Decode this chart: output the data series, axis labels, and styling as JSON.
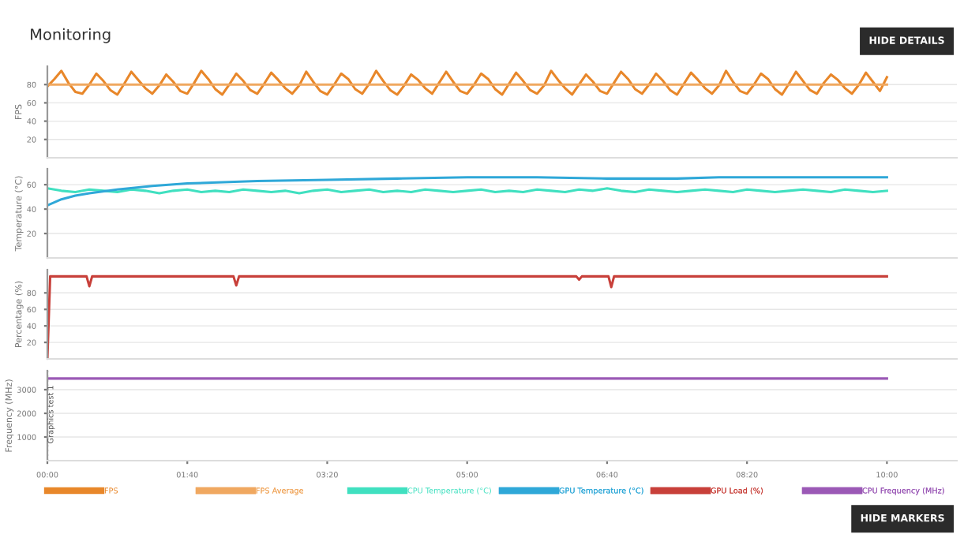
{
  "chart_data": [
    {
      "type": "line",
      "title": "Monitoring",
      "ylabel": "FPS",
      "xlim": [
        0,
        650
      ],
      "ylim": [
        0,
        100
      ],
      "yticks": [
        20,
        40,
        60,
        80
      ],
      "grid": "y",
      "tick_labels": "y",
      "annotations": [
        "HIDE DETAILS"
      ],
      "series": [
        {
          "name": "FPS",
          "color": "#e8872a",
          "x": [
            0,
            5,
            10,
            15,
            20,
            25,
            30,
            35,
            40,
            45,
            50,
            55,
            60,
            65,
            70,
            75,
            80,
            85,
            90,
            95,
            100,
            105,
            110,
            115,
            120,
            125,
            130,
            135,
            140,
            145,
            150,
            155,
            160,
            165,
            170,
            175,
            180,
            185,
            190,
            195,
            200,
            205,
            210,
            215,
            220,
            225,
            230,
            235,
            240,
            245,
            250,
            255,
            260,
            265,
            270,
            275,
            280,
            285,
            290,
            295,
            300,
            305,
            310,
            315,
            320,
            325,
            330,
            335,
            340,
            345,
            350,
            355,
            360,
            365,
            370,
            375,
            380,
            385,
            390,
            395,
            400,
            405,
            410,
            415,
            420,
            425,
            430,
            435,
            440,
            445,
            450,
            455,
            460,
            465,
            470,
            475,
            480,
            485,
            490,
            495,
            500,
            505,
            510,
            515,
            520,
            525,
            530,
            535,
            540,
            545,
            550,
            555,
            560,
            565,
            570,
            575,
            580,
            585,
            590,
            595,
            600
          ],
          "values": [
            78,
            86,
            95,
            82,
            72,
            70,
            80,
            92,
            84,
            74,
            69,
            81,
            94,
            85,
            76,
            70,
            79,
            91,
            83,
            73,
            70,
            82,
            95,
            86,
            75,
            69,
            80,
            92,
            84,
            74,
            70,
            81,
            93,
            85,
            76,
            70,
            79,
            94,
            83,
            73,
            69,
            80,
            92,
            86,
            75,
            70,
            81,
            95,
            84,
            74,
            69,
            79,
            91,
            85,
            76,
            70,
            82,
            94,
            83,
            73,
            70,
            80,
            92,
            86,
            75,
            69,
            81,
            93,
            84,
            74,
            70,
            79,
            95,
            85,
            76,
            69,
            80,
            91,
            83,
            73,
            70,
            82,
            94,
            86,
            75,
            70,
            80,
            92,
            84,
            74,
            69,
            81,
            93,
            85,
            76,
            70,
            79,
            95,
            83,
            73,
            70,
            80,
            92,
            86,
            75,
            69,
            81,
            94,
            84,
            74,
            70,
            82,
            91,
            85,
            76,
            70,
            80,
            93,
            83,
            73,
            88
          ]
        },
        {
          "name": "FPS Average",
          "color": "#f0a860",
          "x": [
            0,
            600
          ],
          "values": [
            80,
            80
          ]
        }
      ]
    },
    {
      "type": "line",
      "ylabel": "Temperature (°C)",
      "xlim": [
        0,
        650
      ],
      "ylim": [
        0,
        73
      ],
      "yticks": [
        20,
        40,
        60
      ],
      "grid": "y",
      "tick_labels": "y",
      "series": [
        {
          "name": "CPU Temperature (°C)",
          "color": "#40e0c0",
          "x": [
            0,
            10,
            20,
            30,
            40,
            50,
            60,
            70,
            80,
            90,
            100,
            110,
            120,
            130,
            140,
            150,
            160,
            170,
            180,
            190,
            200,
            210,
            220,
            230,
            240,
            250,
            260,
            270,
            280,
            290,
            300,
            310,
            320,
            330,
            340,
            350,
            360,
            370,
            380,
            390,
            400,
            410,
            420,
            430,
            440,
            450,
            460,
            470,
            480,
            490,
            500,
            510,
            520,
            530,
            540,
            550,
            560,
            570,
            580,
            590,
            600
          ],
          "values": [
            57,
            55,
            54,
            56,
            55,
            54,
            56,
            55,
            53,
            55,
            56,
            54,
            55,
            54,
            56,
            55,
            54,
            55,
            53,
            55,
            56,
            54,
            55,
            56,
            54,
            55,
            54,
            56,
            55,
            54,
            55,
            56,
            54,
            55,
            54,
            56,
            55,
            54,
            56,
            55,
            57,
            55,
            54,
            56,
            55,
            54,
            55,
            56,
            55,
            54,
            56,
            55,
            54,
            55,
            56,
            55,
            54,
            56,
            55,
            54,
            55
          ]
        },
        {
          "name": "GPU Temperature (°C)",
          "color": "#2fa8d8",
          "x": [
            0,
            10,
            20,
            30,
            50,
            75,
            100,
            150,
            200,
            250,
            300,
            350,
            400,
            450,
            480,
            500,
            550,
            600
          ],
          "values": [
            43,
            48,
            51,
            53,
            56,
            59,
            61,
            63,
            64,
            65,
            66,
            66,
            65,
            65,
            66,
            66,
            66,
            66
          ]
        }
      ]
    },
    {
      "type": "line",
      "ylabel": "Percentage (%)",
      "xlim": [
        0,
        650
      ],
      "ylim": [
        0,
        108
      ],
      "yticks": [
        20,
        40,
        60,
        80
      ],
      "grid": "y",
      "tick_labels": "y",
      "series": [
        {
          "name": "GPU Load (%)",
          "color": "#c8403a",
          "x": [
            0,
            2,
            28,
            30,
            32,
            133,
            135,
            137,
            378,
            380,
            382,
            401,
            403,
            405,
            600
          ],
          "values": [
            0,
            100,
            100,
            88,
            100,
            100,
            89,
            100,
            100,
            96,
            100,
            100,
            87,
            100,
            100
          ]
        }
      ]
    },
    {
      "type": "line",
      "ylabel": "Frequency (MHz)",
      "xlim": [
        0,
        650
      ],
      "ylim": [
        0,
        3800
      ],
      "yticks": [
        1000,
        2000,
        3000
      ],
      "xticks": [
        {
          "value": 0,
          "label": "00:00"
        },
        {
          "value": 100,
          "label": "01:40"
        },
        {
          "value": 200,
          "label": "03:20"
        },
        {
          "value": 300,
          "label": "05:00"
        },
        {
          "value": 400,
          "label": "06:40"
        },
        {
          "value": 500,
          "label": "08:20"
        },
        {
          "value": 600,
          "label": "10:00"
        }
      ],
      "grid": "y",
      "legend": "bottom",
      "annotations": [
        "HIDE MARKERS"
      ],
      "ref_lines": [
        {
          "axis": "x",
          "value": 0,
          "label": "Graphics test 1",
          "color": "#555555",
          "line_style": "dotted"
        }
      ],
      "series": [
        {
          "name": "CPU Frequency (MHz)",
          "color": "#9b59b6",
          "x": [
            0,
            600
          ],
          "values": [
            3470,
            3470
          ]
        }
      ]
    }
  ]
}
